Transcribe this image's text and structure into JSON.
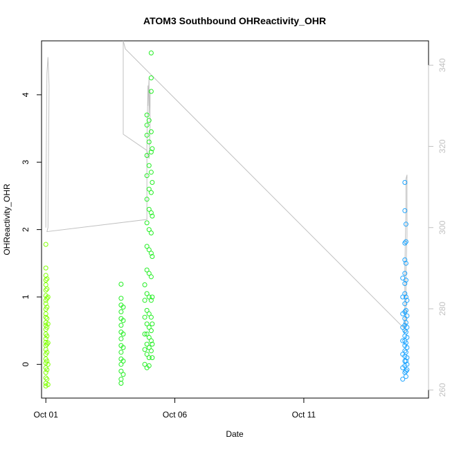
{
  "chart_data": {
    "type": "scatter",
    "title": "ATOM3 Southbound OHReactivity_OHR",
    "xlabel": "Date",
    "ylabel": "OHReactivity_OHR",
    "x_axis": {
      "type": "date",
      "range": [
        "2016-09-30T20:00",
        "2016-10-15T20:00"
      ],
      "ticks": [
        {
          "value": "2016-10-01",
          "label": "Oct 01"
        },
        {
          "value": "2016-10-06",
          "label": "Oct 06"
        },
        {
          "value": "2016-10-11",
          "label": "Oct 11"
        }
      ]
    },
    "y_axis": {
      "range": [
        -0.5,
        4.8
      ],
      "ticks": [
        0,
        1,
        2,
        3,
        4
      ]
    },
    "y2_axis": {
      "range": [
        258,
        346
      ],
      "ticks": [
        260,
        280,
        300,
        320,
        340
      ],
      "color": "#c0c0c0"
    },
    "grid": false,
    "legend": "none",
    "colors": {
      "early": "#7fff00",
      "middle": "#22ee22",
      "late": "#1aa3ff",
      "line": "#c0c0c0"
    },
    "series": [
      {
        "role": "scatter",
        "color": "#7fff00",
        "points": [
          [
            "2016-10-01T00:00",
            1.78
          ],
          [
            "2016-10-01T00:00",
            1.43
          ],
          [
            "2016-10-01T00:00",
            1.32
          ],
          [
            "2016-10-01T00:00",
            1.25
          ],
          [
            "2016-10-01T00:00",
            1.18
          ],
          [
            "2016-10-01T00:00",
            1.1
          ],
          [
            "2016-10-01T00:00",
            1.02
          ],
          [
            "2016-10-01T00:00",
            0.95
          ],
          [
            "2016-10-01T00:00",
            0.9
          ],
          [
            "2016-10-01T00:00",
            0.82
          ],
          [
            "2016-10-01T00:00",
            0.75
          ],
          [
            "2016-10-01T00:00",
            0.7
          ],
          [
            "2016-10-01T00:00",
            0.62
          ],
          [
            "2016-10-01T00:00",
            0.58
          ],
          [
            "2016-10-01T00:00",
            0.52
          ],
          [
            "2016-10-01T00:00",
            0.45
          ],
          [
            "2016-10-01T00:00",
            0.38
          ],
          [
            "2016-10-01T00:00",
            0.33
          ],
          [
            "2016-10-01T00:00",
            0.28
          ],
          [
            "2016-10-01T00:00",
            0.22
          ],
          [
            "2016-10-01T00:00",
            0.15
          ],
          [
            "2016-10-01T00:00",
            0.08
          ],
          [
            "2016-10-01T00:00",
            0.02
          ],
          [
            "2016-10-01T00:00",
            -0.05
          ],
          [
            "2016-10-01T00:00",
            -0.12
          ],
          [
            "2016-10-01T00:00",
            -0.2
          ],
          [
            "2016-10-01T00:00",
            -0.28
          ],
          [
            "2016-10-01T00:00",
            -0.32
          ],
          [
            "2016-10-01T01:00",
            1.27
          ],
          [
            "2016-10-01T01:00",
            1.12
          ],
          [
            "2016-10-01T01:00",
            0.98
          ],
          [
            "2016-10-01T01:00",
            0.85
          ],
          [
            "2016-10-01T01:00",
            0.68
          ],
          [
            "2016-10-01T01:00",
            0.55
          ],
          [
            "2016-10-01T01:00",
            0.42
          ],
          [
            "2016-10-01T01:00",
            0.3
          ],
          [
            "2016-10-01T01:00",
            0.18
          ],
          [
            "2016-10-01T01:00",
            0.05
          ],
          [
            "2016-10-01T01:00",
            -0.08
          ],
          [
            "2016-10-01T01:00",
            -0.22
          ],
          [
            "2016-10-01T02:00",
            1.0
          ],
          [
            "2016-10-01T02:00",
            0.6
          ],
          [
            "2016-10-01T02:00",
            0.32
          ],
          [
            "2016-10-01T02:00",
            0.0
          ],
          [
            "2016-10-01T02:00",
            -0.3
          ]
        ]
      },
      {
        "role": "scatter",
        "color": "#22ee22",
        "points": [
          [
            "2016-10-03T22:00",
            1.19
          ],
          [
            "2016-10-03T22:00",
            0.98
          ],
          [
            "2016-10-03T22:00",
            0.88
          ],
          [
            "2016-10-03T22:00",
            0.78
          ],
          [
            "2016-10-03T22:00",
            0.68
          ],
          [
            "2016-10-03T22:00",
            0.58
          ],
          [
            "2016-10-03T22:00",
            0.48
          ],
          [
            "2016-10-03T22:00",
            0.38
          ],
          [
            "2016-10-03T22:00",
            0.28
          ],
          [
            "2016-10-03T22:00",
            0.18
          ],
          [
            "2016-10-03T22:00",
            0.08
          ],
          [
            "2016-10-03T22:00",
            0.0
          ],
          [
            "2016-10-03T22:00",
            -0.1
          ],
          [
            "2016-10-03T22:00",
            -0.22
          ],
          [
            "2016-10-03T22:00",
            -0.28
          ],
          [
            "2016-10-04T00:00",
            0.85
          ],
          [
            "2016-10-04T00:00",
            0.65
          ],
          [
            "2016-10-04T00:00",
            0.45
          ],
          [
            "2016-10-04T00:00",
            0.25
          ],
          [
            "2016-10-04T00:00",
            0.05
          ],
          [
            "2016-10-04T00:00",
            -0.15
          ],
          [
            "2016-10-04T20:00",
            1.18
          ],
          [
            "2016-10-04T20:00",
            0.95
          ],
          [
            "2016-10-04T20:00",
            0.7
          ],
          [
            "2016-10-04T20:00",
            0.45
          ],
          [
            "2016-10-04T20:00",
            0.22
          ],
          [
            "2016-10-04T20:00",
            0.0
          ],
          [
            "2016-10-04T22:00",
            3.7
          ],
          [
            "2016-10-04T22:00",
            3.55
          ],
          [
            "2016-10-04T22:00",
            3.4
          ],
          [
            "2016-10-04T22:00",
            3.1
          ],
          [
            "2016-10-04T22:00",
            2.8
          ],
          [
            "2016-10-04T22:00",
            2.45
          ],
          [
            "2016-10-04T22:00",
            2.1
          ],
          [
            "2016-10-04T22:00",
            1.75
          ],
          [
            "2016-10-04T22:00",
            1.4
          ],
          [
            "2016-10-04T22:00",
            1.05
          ],
          [
            "2016-10-04T22:00",
            0.8
          ],
          [
            "2016-10-04T22:00",
            0.6
          ],
          [
            "2016-10-04T22:00",
            0.45
          ],
          [
            "2016-10-04T22:00",
            0.3
          ],
          [
            "2016-10-04T22:00",
            0.15
          ],
          [
            "2016-10-04T22:00",
            -0.05
          ],
          [
            "2016-10-05T00:00",
            3.62
          ],
          [
            "2016-10-05T00:00",
            3.3
          ],
          [
            "2016-10-05T00:00",
            2.95
          ],
          [
            "2016-10-05T00:00",
            2.6
          ],
          [
            "2016-10-05T00:00",
            2.3
          ],
          [
            "2016-10-05T00:00",
            2.0
          ],
          [
            "2016-10-05T00:00",
            1.7
          ],
          [
            "2016-10-05T00:00",
            1.35
          ],
          [
            "2016-10-05T00:00",
            1.0
          ],
          [
            "2016-10-05T00:00",
            0.75
          ],
          [
            "2016-10-05T00:00",
            0.55
          ],
          [
            "2016-10-05T00:00",
            0.4
          ],
          [
            "2016-10-05T00:00",
            0.25
          ],
          [
            "2016-10-05T00:00",
            0.1
          ],
          [
            "2016-10-05T00:00",
            -0.02
          ],
          [
            "2016-10-05T02:00",
            4.62
          ],
          [
            "2016-10-05T02:00",
            4.25
          ],
          [
            "2016-10-05T02:00",
            4.05
          ],
          [
            "2016-10-05T02:00",
            3.45
          ],
          [
            "2016-10-05T02:00",
            3.15
          ],
          [
            "2016-10-05T02:00",
            2.85
          ],
          [
            "2016-10-05T02:00",
            2.55
          ],
          [
            "2016-10-05T02:00",
            2.25
          ],
          [
            "2016-10-05T02:00",
            1.95
          ],
          [
            "2016-10-05T02:00",
            1.65
          ],
          [
            "2016-10-05T02:00",
            1.3
          ],
          [
            "2016-10-05T02:00",
            0.95
          ],
          [
            "2016-10-05T02:00",
            0.7
          ],
          [
            "2016-10-05T02:00",
            0.5
          ],
          [
            "2016-10-05T02:00",
            0.35
          ],
          [
            "2016-10-05T02:00",
            0.2
          ],
          [
            "2016-10-05T03:00",
            3.2
          ],
          [
            "2016-10-05T03:00",
            2.7
          ],
          [
            "2016-10-05T03:00",
            2.2
          ],
          [
            "2016-10-05T03:00",
            1.6
          ],
          [
            "2016-10-05T03:00",
            1.0
          ],
          [
            "2016-10-05T03:00",
            0.6
          ],
          [
            "2016-10-05T03:00",
            0.3
          ],
          [
            "2016-10-05T03:00",
            0.1
          ]
        ]
      },
      {
        "role": "scatter",
        "color": "#1aa3ff",
        "points": [
          [
            "2016-10-14T20:00",
            1.28
          ],
          [
            "2016-10-14T20:00",
            1.0
          ],
          [
            "2016-10-14T20:00",
            0.75
          ],
          [
            "2016-10-14T20:00",
            0.55
          ],
          [
            "2016-10-14T20:00",
            0.35
          ],
          [
            "2016-10-14T20:00",
            0.15
          ],
          [
            "2016-10-14T20:00",
            -0.05
          ],
          [
            "2016-10-14T20:00",
            -0.22
          ],
          [
            "2016-10-14T22:00",
            2.7
          ],
          [
            "2016-10-14T22:00",
            2.28
          ],
          [
            "2016-10-14T22:00",
            1.8
          ],
          [
            "2016-10-14T22:00",
            1.55
          ],
          [
            "2016-10-14T22:00",
            1.35
          ],
          [
            "2016-10-14T22:00",
            1.2
          ],
          [
            "2016-10-14T22:00",
            1.05
          ],
          [
            "2016-10-14T22:00",
            0.9
          ],
          [
            "2016-10-14T22:00",
            0.78
          ],
          [
            "2016-10-14T22:00",
            0.68
          ],
          [
            "2016-10-14T22:00",
            0.58
          ],
          [
            "2016-10-14T22:00",
            0.5
          ],
          [
            "2016-10-14T22:00",
            0.42
          ],
          [
            "2016-10-14T22:00",
            0.35
          ],
          [
            "2016-10-14T22:00",
            0.28
          ],
          [
            "2016-10-14T22:00",
            0.2
          ],
          [
            "2016-10-14T22:00",
            0.12
          ],
          [
            "2016-10-14T22:00",
            0.05
          ],
          [
            "2016-10-14T22:00",
            -0.02
          ],
          [
            "2016-10-14T22:00",
            -0.12
          ],
          [
            "2016-10-14T23:00",
            2.08
          ],
          [
            "2016-10-14T23:00",
            1.82
          ],
          [
            "2016-10-14T23:00",
            1.5
          ],
          [
            "2016-10-14T23:00",
            1.25
          ],
          [
            "2016-10-14T23:00",
            1.0
          ],
          [
            "2016-10-14T23:00",
            0.8
          ],
          [
            "2016-10-14T23:00",
            0.62
          ],
          [
            "2016-10-14T23:00",
            0.48
          ],
          [
            "2016-10-14T23:00",
            0.32
          ],
          [
            "2016-10-14T23:00",
            0.18
          ],
          [
            "2016-10-14T23:00",
            0.05
          ],
          [
            "2016-10-14T23:00",
            -0.1
          ],
          [
            "2016-10-14T23:00",
            -0.18
          ],
          [
            "2016-10-15T00:00",
            0.95
          ],
          [
            "2016-10-15T00:00",
            0.72
          ],
          [
            "2016-10-15T00:00",
            0.55
          ],
          [
            "2016-10-15T00:00",
            0.4
          ],
          [
            "2016-10-15T00:00",
            0.25
          ],
          [
            "2016-10-15T00:00",
            0.1
          ],
          [
            "2016-10-15T00:00",
            0.0
          ],
          [
            "2016-10-15T00:00",
            -0.08
          ]
        ]
      },
      {
        "role": "line",
        "axis": "y2",
        "color": "#c0c0c0",
        "points": [
          [
            "2016-10-01T00:00",
            300
          ],
          [
            "2016-10-01T00:00",
            305
          ],
          [
            "2016-10-01T01:00",
            338
          ],
          [
            "2016-10-01T02:00",
            342
          ],
          [
            "2016-10-01T03:00",
            335
          ],
          [
            "2016-10-01T02:00",
            300
          ],
          [
            "2016-10-01T01:00",
            299
          ],
          [
            "2016-10-04T22:00",
            302
          ],
          [
            "2016-10-04T22:00",
            320
          ],
          [
            "2016-10-04T23:00",
            335
          ],
          [
            "2016-10-04T23:00",
            330
          ],
          [
            "2016-10-05T00:00",
            337
          ],
          [
            "2016-10-05T00:00",
            328
          ],
          [
            "2016-10-05T01:00",
            334
          ],
          [
            "2016-10-05T01:00",
            325
          ],
          [
            "2016-10-05T00:00",
            317
          ],
          [
            "2016-10-04T22:00",
            319
          ],
          [
            "2016-10-04T00:00",
            323
          ],
          [
            "2016-10-04T00:00",
            346
          ],
          [
            "2016-10-04T02:00",
            344
          ],
          [
            "2016-10-14T22:00",
            275
          ],
          [
            "2016-10-14T22:00",
            290
          ],
          [
            "2016-10-14T23:00",
            305
          ],
          [
            "2016-10-14T23:00",
            312
          ],
          [
            "2016-10-15T00:00",
            313
          ],
          [
            "2016-10-15T00:00",
            308
          ],
          [
            "2016-10-15T00:00",
            298
          ],
          [
            "2016-10-14T23:00",
            289
          ],
          [
            "2016-10-14T23:00",
            278
          ],
          [
            "2016-10-14T22:00",
            274
          ]
        ]
      }
    ]
  }
}
